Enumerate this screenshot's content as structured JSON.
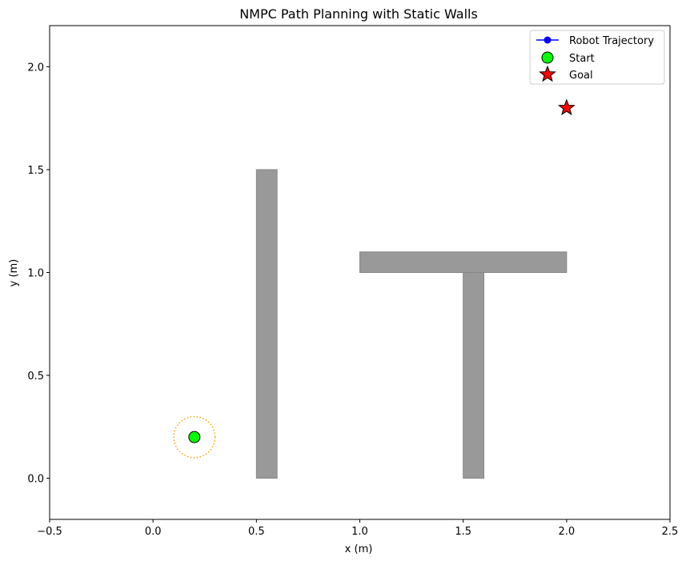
{
  "chart_data": {
    "type": "scatter",
    "title": "NMPC Path Planning with Static Walls",
    "xlabel": "x (m)",
    "ylabel": "y (m)",
    "xlim": [
      -0.5,
      2.5
    ],
    "ylim": [
      -0.2,
      2.2
    ],
    "xticks": [
      -0.5,
      0.0,
      0.5,
      1.0,
      1.5,
      2.0,
      2.5
    ],
    "xtick_labels": [
      "−0.5",
      "0.0",
      "0.5",
      "1.0",
      "1.5",
      "2.0",
      "2.5"
    ],
    "yticks": [
      0.0,
      0.5,
      1.0,
      1.5,
      2.0
    ],
    "ytick_labels": [
      "0.0",
      "0.5",
      "1.0",
      "1.5",
      "2.0"
    ],
    "grid": false,
    "legend_placement": "top-right",
    "walls": [
      {
        "x": 0.5,
        "y": 0.0,
        "width": 0.1,
        "height": 1.5
      },
      {
        "x": 1.0,
        "y": 1.0,
        "width": 1.0,
        "height": 0.1
      },
      {
        "x": 1.5,
        "y": 0.0,
        "width": 0.1,
        "height": 1.0
      }
    ],
    "wall_color": "#999999",
    "robot_trajectory": {
      "name": "Robot Trajectory",
      "color": "#0000ff",
      "x": [],
      "y": []
    },
    "start": {
      "name": "Start",
      "x": 0.2,
      "y": 0.2,
      "color": "#00ff00"
    },
    "goal": {
      "name": "Goal",
      "x": 2.0,
      "y": 1.8,
      "color": "#ff0000"
    },
    "robot_radius": {
      "x": 0.2,
      "y": 0.2,
      "r": 0.1,
      "color": "#ffa500"
    }
  }
}
